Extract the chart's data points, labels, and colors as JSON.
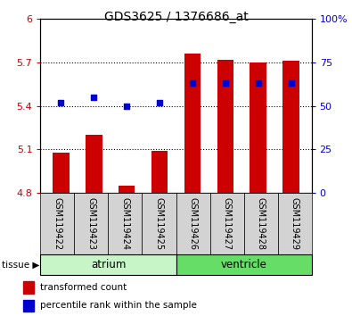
{
  "title": "GDS3625 / 1376686_at",
  "samples": [
    "GSM119422",
    "GSM119423",
    "GSM119424",
    "GSM119425",
    "GSM119426",
    "GSM119427",
    "GSM119428",
    "GSM119429"
  ],
  "transformed_counts": [
    5.08,
    5.2,
    4.85,
    5.09,
    5.76,
    5.72,
    5.7,
    5.71
  ],
  "percentile_ranks": [
    52,
    55,
    50,
    52,
    63,
    63,
    63,
    63
  ],
  "bar_bottom": 4.8,
  "ylim_left": [
    4.8,
    6.0
  ],
  "ylim_right": [
    0,
    100
  ],
  "yticks_left": [
    4.8,
    5.1,
    5.4,
    5.7,
    6.0
  ],
  "yticks_right": [
    0,
    25,
    50,
    75,
    100
  ],
  "ytick_labels_left": [
    "4.8",
    "5.1",
    "5.4",
    "5.7",
    "6"
  ],
  "ytick_labels_right": [
    "0",
    "25",
    "50",
    "75",
    "100%"
  ],
  "group_atrium_color": "#c8f5c8",
  "group_ventricle_color": "#66dd66",
  "bar_color": "#cc0000",
  "dot_color": "#0000cc",
  "tick_color_left": "#cc0000",
  "tick_color_right": "#0000cc",
  "bar_width": 0.5,
  "dot_size": 22,
  "figsize": [
    3.95,
    3.54
  ],
  "dpi": 100,
  "gridline_yticks": [
    5.1,
    5.4,
    5.7
  ],
  "groups": [
    {
      "name": "atrium",
      "start": 0,
      "end": 4
    },
    {
      "name": "ventricle",
      "start": 4,
      "end": 8
    }
  ]
}
